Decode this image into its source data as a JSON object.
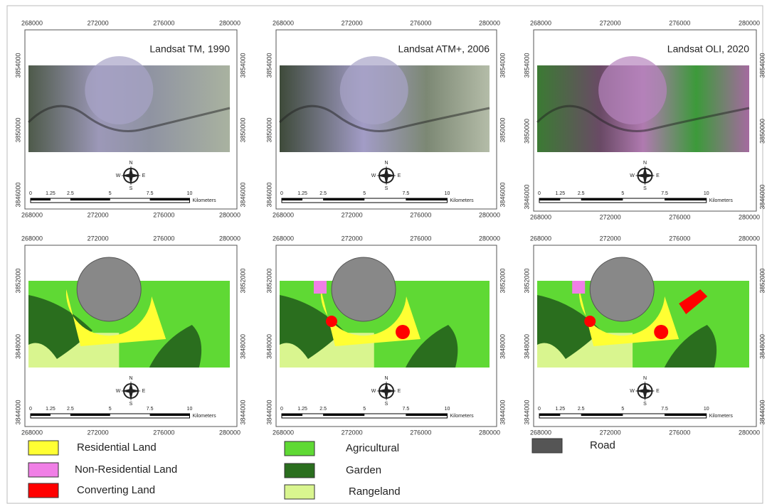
{
  "panels": [
    {
      "title": "Landsat TM, 1990",
      "x_ticks": [
        "268000",
        "272000",
        "276000",
        "280000"
      ],
      "y_ticks": [
        "3854000",
        "3850000",
        "3846000"
      ],
      "scale_labels": [
        "0",
        "1.25",
        "2.5",
        "5",
        "7.5",
        "10"
      ],
      "scale_unit": "Kilometers",
      "compass": [
        "N",
        "E",
        "S",
        "W"
      ]
    },
    {
      "title": "Landsat ATM+, 2006",
      "x_ticks": [
        "268000",
        "272000",
        "276000",
        "280000"
      ],
      "y_ticks": [
        "3854000",
        "3850000",
        "3846000"
      ],
      "scale_labels": [
        "0",
        "1.25",
        "2.5",
        "5",
        "7.5",
        "10"
      ],
      "scale_unit": "Kilometers",
      "compass": [
        "N",
        "E",
        "S",
        "W"
      ]
    },
    {
      "title": "Landsat OLI, 2020",
      "x_ticks": [
        "268000",
        "272000",
        "276000",
        "280000"
      ],
      "y_ticks": [
        "3854000",
        "3850000",
        "3846000"
      ],
      "scale_labels": [
        "0",
        "1.25",
        "2.5",
        "5",
        "7.5",
        "10"
      ],
      "scale_unit": "Kilometers",
      "compass": [
        "N",
        "E",
        "S",
        "W"
      ]
    },
    {
      "x_ticks": [
        "268000",
        "272000",
        "276000",
        "280000"
      ],
      "y_ticks": [
        "3852000",
        "3848000",
        "3844000"
      ],
      "scale_labels": [
        "0",
        "1.25",
        "2.5",
        "5",
        "7.5",
        "10"
      ],
      "scale_unit": "Kilometers",
      "compass": [
        "N",
        "E",
        "S",
        "W"
      ]
    },
    {
      "x_ticks": [
        "268000",
        "272000",
        "276000",
        "280000"
      ],
      "y_ticks": [
        "3852000",
        "3848000",
        "3844000"
      ],
      "scale_labels": [
        "0",
        "1.25",
        "2.5",
        "5",
        "7.5",
        "10"
      ],
      "scale_unit": "Kilometers",
      "compass": [
        "N",
        "E",
        "S",
        "W"
      ]
    },
    {
      "x_ticks": [
        "268000",
        "272000",
        "276000",
        "280000"
      ],
      "y_ticks": [
        "3852000",
        "3848000",
        "3844000"
      ],
      "scale_labels": [
        "0",
        "1.25",
        "2.5",
        "5",
        "7.5",
        "10"
      ],
      "scale_unit": "Kilometers",
      "compass": [
        "N",
        "E",
        "S",
        "W"
      ]
    }
  ],
  "legend": [
    {
      "label": "Residential Land",
      "color": "#ffff33"
    },
    {
      "label": "Non-Residential Land",
      "color": "#f07fe6"
    },
    {
      "label": "Converting Land",
      "color": "#ff0000"
    },
    {
      "label": "Agricultural",
      "color": "#5fd934"
    },
    {
      "label": "Garden",
      "color": "#2a6e1e"
    },
    {
      "label": "Rangeland",
      "color": "#d9f58f"
    },
    {
      "label": "Road",
      "color": "#555555"
    }
  ]
}
